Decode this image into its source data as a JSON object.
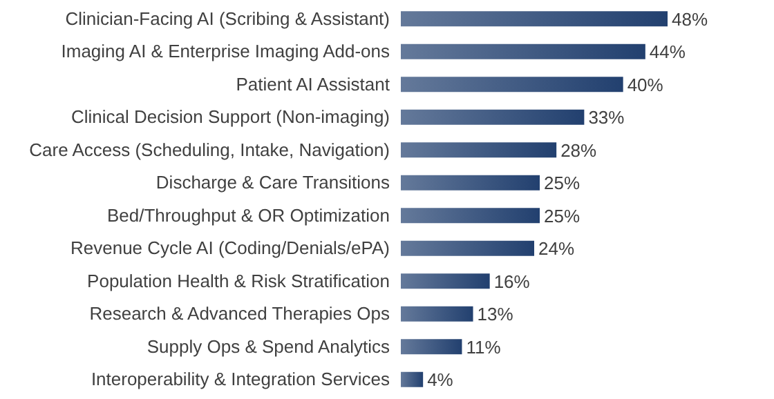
{
  "chart_data": {
    "type": "bar",
    "orientation": "horizontal",
    "categories": [
      "Clinician-Facing AI (Scribing & Assistant)",
      "Imaging AI & Enterprise Imaging Add-ons",
      "Patient AI Assistant",
      "Clinical Decision Support (Non-imaging)",
      "Care Access (Scheduling, Intake, Navigation)",
      "Discharge & Care Transitions",
      "Bed/Throughput & OR Optimization",
      "Revenue Cycle AI (Coding/Denials/ePA)",
      "Population Health & Risk Stratification",
      "Research & Advanced Therapies Ops",
      "Supply Ops & Spend Analytics",
      "Interoperability & Integration Services"
    ],
    "values": [
      48,
      44,
      40,
      33,
      28,
      25,
      25,
      24,
      16,
      13,
      11,
      4
    ],
    "value_labels": [
      "48%",
      "44%",
      "40%",
      "33%",
      "28%",
      "25%",
      "25%",
      "24%",
      "16%",
      "13%",
      "11%",
      "4%"
    ],
    "color": "#22406f"
  }
}
